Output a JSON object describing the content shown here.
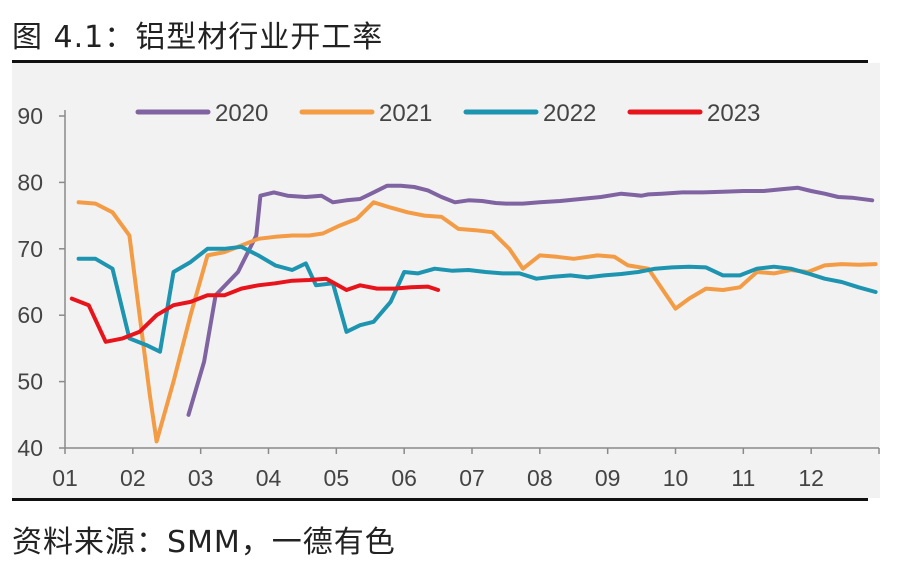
{
  "figure": {
    "title": "图 4.1：铝型材行业开工率",
    "source": "资料来源：SMM，一德有色"
  },
  "chart_data": {
    "type": "line",
    "title": "图 4.1：铝型材行业开工率",
    "xlabel": "",
    "ylabel": "",
    "ylim": [
      40,
      90
    ],
    "yticks": [
      40,
      50,
      60,
      70,
      80,
      90
    ],
    "xlim": [
      1,
      13
    ],
    "xticks": [
      "01",
      "02",
      "03",
      "04",
      "05",
      "06",
      "07",
      "08",
      "09",
      "10",
      "11",
      "12"
    ],
    "grid": false,
    "legend_position": "top",
    "series": [
      {
        "name": "2020",
        "color": "#8064a2",
        "x": [
          2.82,
          3.05,
          3.22,
          3.55,
          3.82,
          3.88,
          4.08,
          4.28,
          4.55,
          4.78,
          4.95,
          5.15,
          5.35,
          5.55,
          5.75,
          5.95,
          6.15,
          6.35,
          6.55,
          6.75,
          6.95,
          7.15,
          7.35,
          7.5,
          7.75,
          8.0,
          8.3,
          8.6,
          8.9,
          9.2,
          9.5,
          9.6,
          9.8,
          10.1,
          10.4,
          10.7,
          11.0,
          11.3,
          11.6,
          11.8,
          12.0,
          12.2,
          12.4,
          12.6,
          12.9
        ],
        "values": [
          45.0,
          53.0,
          63.0,
          66.5,
          72.0,
          78.0,
          78.5,
          78.0,
          77.8,
          78.0,
          77.0,
          77.3,
          77.5,
          78.5,
          79.5,
          79.5,
          79.3,
          78.8,
          77.8,
          77.0,
          77.3,
          77.2,
          76.9,
          76.8,
          76.8,
          77.0,
          77.2,
          77.5,
          77.8,
          78.3,
          78.0,
          78.2,
          78.3,
          78.5,
          78.5,
          78.6,
          78.7,
          78.7,
          79.0,
          79.2,
          78.7,
          78.3,
          77.8,
          77.7,
          77.3
        ]
      },
      {
        "name": "2021",
        "color": "#f39c45",
        "x": [
          1.2,
          1.45,
          1.7,
          1.95,
          2.1,
          2.25,
          2.35,
          2.6,
          2.85,
          3.1,
          3.35,
          3.6,
          3.85,
          4.1,
          4.35,
          4.6,
          4.8,
          5.05,
          5.3,
          5.55,
          5.8,
          6.05,
          6.3,
          6.55,
          6.8,
          7.05,
          7.3,
          7.55,
          7.75,
          8.0,
          8.25,
          8.5,
          8.85,
          9.1,
          9.3,
          9.6,
          10.0,
          10.2,
          10.45,
          10.7,
          10.95,
          11.2,
          11.45,
          11.7,
          11.95,
          12.2,
          12.45,
          12.7,
          12.95
        ],
        "values": [
          77.0,
          76.8,
          75.5,
          72.0,
          60.0,
          48.0,
          41.0,
          50.0,
          60.0,
          69.0,
          69.5,
          70.5,
          71.5,
          71.8,
          72.0,
          72.0,
          72.3,
          73.5,
          74.5,
          77.0,
          76.2,
          75.5,
          75.0,
          74.8,
          73.0,
          72.8,
          72.5,
          70.0,
          67.0,
          69.0,
          68.8,
          68.5,
          69.0,
          68.8,
          67.5,
          67.0,
          61.0,
          62.5,
          64.0,
          63.8,
          64.2,
          66.5,
          66.3,
          66.8,
          66.5,
          67.5,
          67.7,
          67.6,
          67.7
        ]
      },
      {
        "name": "2022",
        "color": "#1d94b0",
        "x": [
          1.2,
          1.45,
          1.7,
          1.95,
          2.2,
          2.4,
          2.6,
          2.85,
          3.1,
          3.35,
          3.6,
          3.85,
          4.1,
          4.35,
          4.55,
          4.7,
          4.95,
          5.15,
          5.35,
          5.55,
          5.8,
          6.0,
          6.2,
          6.45,
          6.7,
          6.95,
          7.2,
          7.45,
          7.7,
          7.95,
          8.2,
          8.45,
          8.7,
          8.95,
          9.2,
          9.45,
          9.7,
          9.95,
          10.2,
          10.45,
          10.7,
          10.95,
          11.2,
          11.45,
          11.7,
          11.95,
          12.2,
          12.45,
          12.7,
          12.95
        ],
        "values": [
          68.5,
          68.5,
          67.0,
          56.5,
          55.5,
          54.5,
          66.5,
          68.0,
          70.0,
          70.0,
          70.3,
          69.0,
          67.5,
          66.8,
          67.8,
          64.5,
          64.8,
          57.5,
          58.5,
          59.0,
          62.0,
          66.5,
          66.3,
          67.0,
          66.7,
          66.8,
          66.5,
          66.3,
          66.3,
          65.5,
          65.8,
          66.0,
          65.7,
          66.0,
          66.2,
          66.5,
          67.0,
          67.2,
          67.3,
          67.2,
          66.0,
          66.0,
          67.0,
          67.3,
          67.0,
          66.3,
          65.5,
          65.0,
          64.2,
          63.5
        ]
      },
      {
        "name": "2023",
        "color": "#e8141b",
        "x": [
          1.1,
          1.35,
          1.6,
          1.85,
          2.1,
          2.35,
          2.6,
          2.85,
          3.1,
          3.35,
          3.6,
          3.85,
          4.1,
          4.35,
          4.6,
          4.85,
          5.15,
          5.35,
          5.6,
          5.85,
          6.1,
          6.35,
          6.5
        ],
        "values": [
          62.5,
          61.5,
          56.0,
          56.5,
          57.5,
          60.0,
          61.5,
          62.0,
          63.0,
          63.0,
          64.0,
          64.5,
          64.8,
          65.2,
          65.3,
          65.5,
          63.8,
          64.5,
          64.0,
          64.0,
          64.2,
          64.3,
          63.8
        ]
      }
    ]
  }
}
